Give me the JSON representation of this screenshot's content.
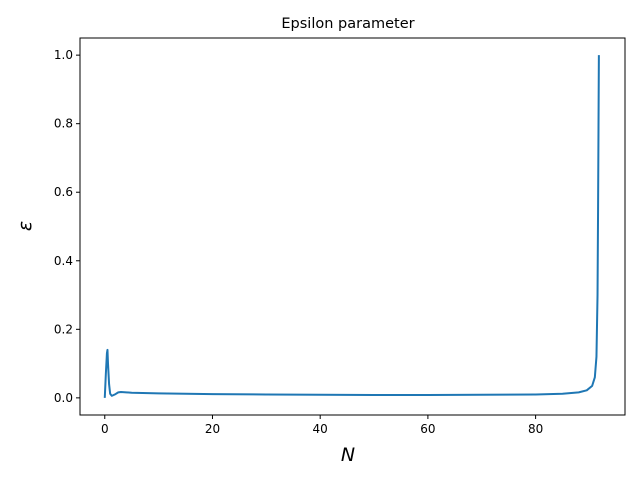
{
  "chart_data": {
    "type": "line",
    "title": "Epsilon parameter",
    "xlabel": "N",
    "ylabel": "ε",
    "xlim": [
      -4.6,
      96.6
    ],
    "ylim": [
      -0.05,
      1.05
    ],
    "xticks": [
      0,
      20,
      40,
      60,
      80
    ],
    "xtick_labels": [
      "0",
      "20",
      "40",
      "60",
      "80"
    ],
    "yticks": [
      0.0,
      0.2,
      0.4,
      0.6,
      0.8,
      1.0
    ],
    "ytick_labels": [
      "0.0",
      "0.2",
      "0.4",
      "0.6",
      "0.8",
      "1.0"
    ],
    "grid": false,
    "legend": "none",
    "series": [
      {
        "color": "#1f77b4",
        "x": [
          0,
          0.2,
          0.4,
          0.5,
          0.6,
          0.8,
          1.0,
          1.3,
          1.6,
          2.0,
          2.5,
          3.0,
          4.0,
          5.0,
          10,
          20,
          30,
          40,
          50,
          60,
          70,
          80,
          85,
          88,
          89.5,
          90.5,
          91.0,
          91.3,
          91.5,
          91.6,
          91.7,
          91.75
        ],
        "y": [
          0.0,
          0.07,
          0.13,
          0.14,
          0.1,
          0.04,
          0.012,
          0.006,
          0.008,
          0.011,
          0.016,
          0.017,
          0.016,
          0.015,
          0.013,
          0.011,
          0.01,
          0.009,
          0.0085,
          0.0085,
          0.009,
          0.01,
          0.012,
          0.016,
          0.022,
          0.035,
          0.06,
          0.12,
          0.3,
          0.55,
          0.85,
          1.0
        ]
      }
    ]
  }
}
